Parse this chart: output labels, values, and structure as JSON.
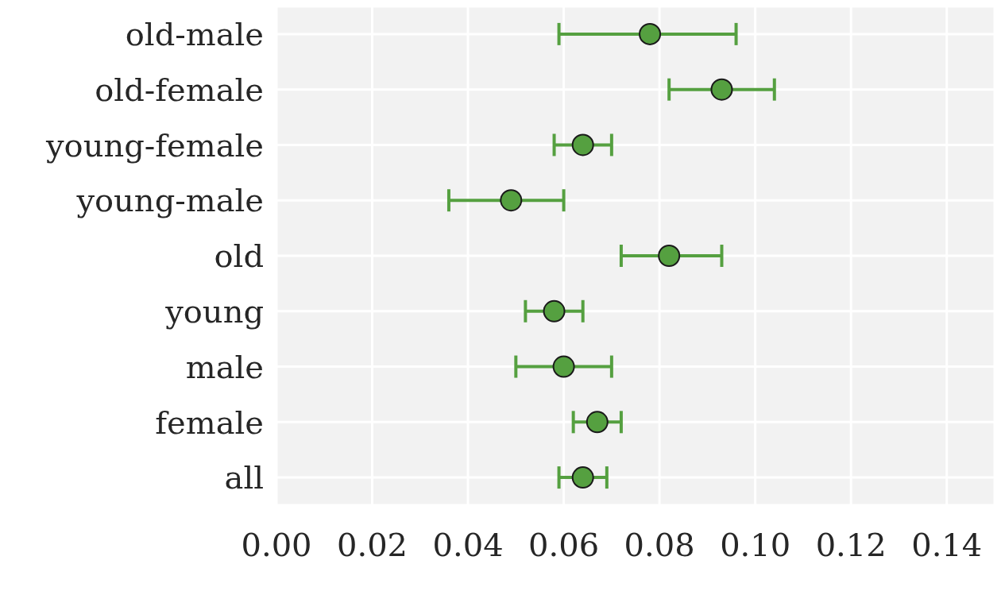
{
  "chart_data": {
    "type": "scatter",
    "orientation": "horizontal",
    "categories": [
      "old-male",
      "old-female",
      "young-female",
      "young-male",
      "old",
      "young",
      "male",
      "female",
      "all"
    ],
    "values": [
      0.078,
      0.093,
      0.064,
      0.049,
      0.082,
      0.058,
      0.06,
      0.067,
      0.064
    ],
    "errors": [
      [
        0.059,
        0.096
      ],
      [
        0.082,
        0.104
      ],
      [
        0.058,
        0.07
      ],
      [
        0.036,
        0.06
      ],
      [
        0.072,
        0.093
      ],
      [
        0.052,
        0.064
      ],
      [
        0.05,
        0.07
      ],
      [
        0.062,
        0.072
      ],
      [
        0.059,
        0.069
      ]
    ],
    "color": "#55a040",
    "xlim": [
      0,
      0.15
    ],
    "xticks": [
      {
        "value": 0,
        "label": "0.00"
      },
      {
        "value": 0.02,
        "label": "0.02"
      },
      {
        "value": 0.04,
        "label": "0.04"
      },
      {
        "value": 0.06,
        "label": "0.06"
      },
      {
        "value": 0.08,
        "label": "0.08"
      },
      {
        "value": 0.1,
        "label": "0.10"
      },
      {
        "value": 0.12,
        "label": "0.12"
      },
      {
        "value": 0.14,
        "label": "0.14"
      }
    ],
    "grid": true,
    "marker": "circle"
  }
}
